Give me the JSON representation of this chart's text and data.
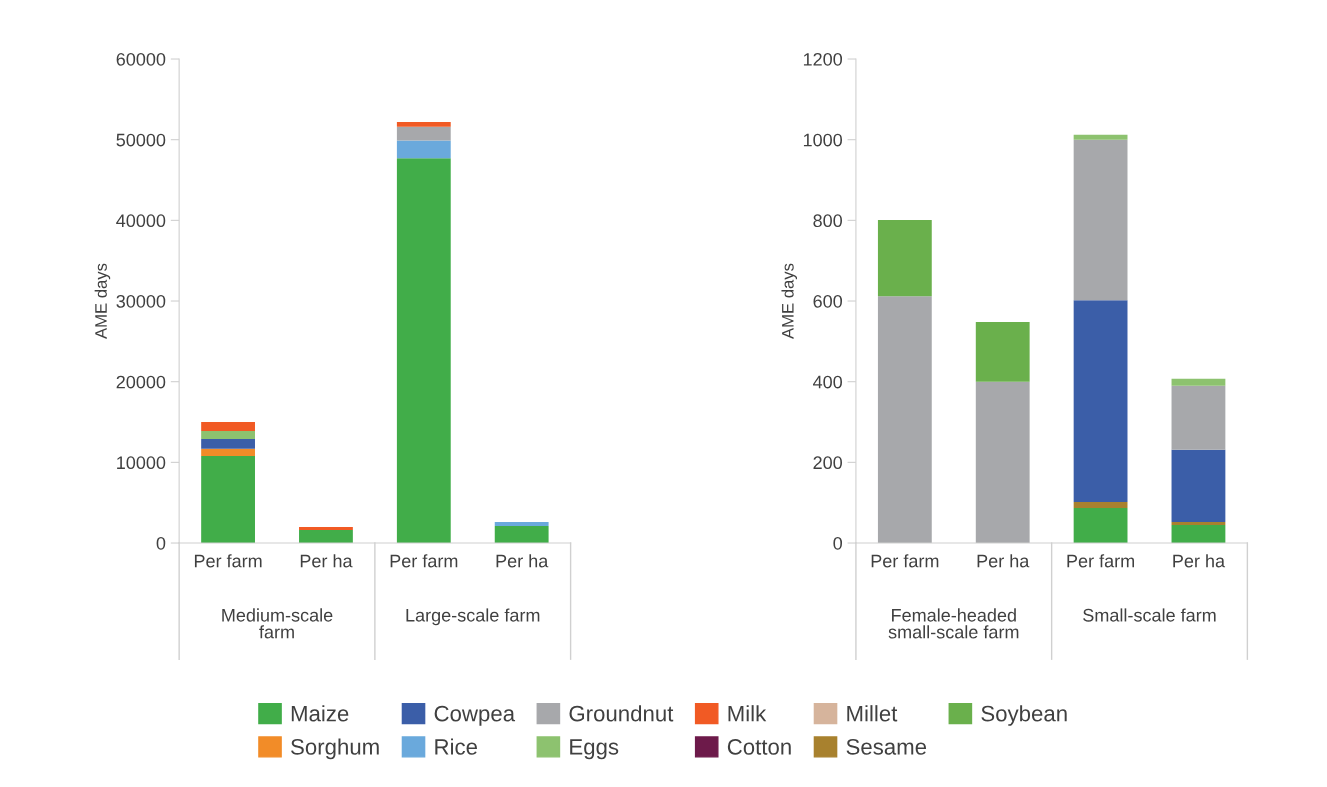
{
  "chart_data": [
    {
      "type": "bar",
      "stacked": true,
      "ylabel": "AME days",
      "categories": [
        "Per farm",
        "Per ha",
        "Per farm",
        "Per ha"
      ],
      "annotations": [
        "Medium-scale\nfarm",
        "Large-scale farm"
      ],
      "ylim": [
        0,
        60000
      ],
      "yticks": [
        0,
        10000,
        20000,
        30000,
        40000,
        50000,
        60000
      ],
      "grid": false,
      "legend": "bottom",
      "series": [
        {
          "name": "Maize",
          "color": "#41ad49",
          "values": [
            10800,
            1600,
            47700,
            2100
          ]
        },
        {
          "name": "Sorghum",
          "color": "#f28c28",
          "values": [
            900,
            null,
            null,
            null
          ]
        },
        {
          "name": "Cowpea",
          "color": "#3b5ea8",
          "values": [
            1200,
            null,
            null,
            null
          ]
        },
        {
          "name": "Rice",
          "color": "#6aa9dc",
          "values": [
            null,
            null,
            2200,
            500
          ]
        },
        {
          "name": "Groundnut",
          "color": "#a7a8ab",
          "values": [
            null,
            null,
            1700,
            null
          ]
        },
        {
          "name": "Eggs",
          "color": "#8dc26f",
          "values": [
            1000,
            null,
            null,
            null
          ]
        },
        {
          "name": "Milk",
          "color": "#f15a24",
          "values": [
            1100,
            400,
            600,
            null
          ]
        },
        {
          "name": "Cotton",
          "color": "#6d1a4a",
          "values": [
            null,
            null,
            null,
            null
          ]
        },
        {
          "name": "Millet",
          "color": "#d6b49c",
          "values": [
            null,
            null,
            null,
            null
          ]
        }
      ]
    },
    {
      "type": "bar",
      "stacked": true,
      "ylabel": "AME days",
      "categories": [
        "Per farm",
        "Per ha",
        "Per farm",
        "Per ha"
      ],
      "annotations": [
        "Female-headed\nsmall-scale farm",
        "Small-scale farm"
      ],
      "ylim": [
        0,
        1200
      ],
      "yticks": [
        0,
        200,
        400,
        600,
        800,
        1000,
        1200
      ],
      "grid": false,
      "legend": "bottom",
      "series": [
        {
          "name": "Maize",
          "color": "#41ad49",
          "values": [
            null,
            null,
            87,
            45
          ]
        },
        {
          "name": "Sesame",
          "color": "#a8812e",
          "values": [
            null,
            null,
            15,
            7
          ]
        },
        {
          "name": "Cowpea",
          "color": "#3b5ea8",
          "values": [
            null,
            null,
            500,
            179
          ]
        },
        {
          "name": "Groundnut",
          "color": "#a7a8ab",
          "values": [
            612,
            400,
            398,
            159
          ]
        },
        {
          "name": "Eggs",
          "color": "#8dc26f",
          "values": [
            null,
            null,
            12,
            17
          ]
        },
        {
          "name": "Soybean",
          "color": "#6ab04c",
          "values": [
            189,
            148,
            null,
            null
          ]
        }
      ]
    }
  ]
}
